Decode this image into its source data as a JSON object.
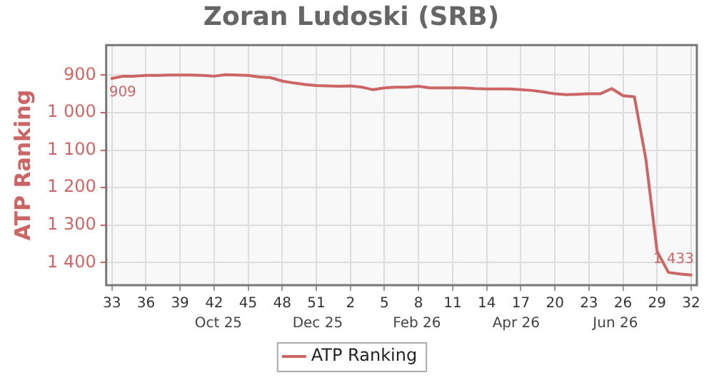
{
  "chart_data": {
    "type": "line",
    "title": "Zoran Ludoski (SRB)",
    "ylabel": "ATP Ranking",
    "categories": [
      "33",
      null,
      null,
      "36",
      null,
      null,
      "39",
      null,
      null,
      "42",
      null,
      null,
      "45",
      null,
      null,
      "48",
      null,
      null,
      "51",
      null,
      null,
      "2",
      null,
      null,
      "5",
      null,
      null,
      "8",
      null,
      null,
      "11",
      null,
      null,
      "14",
      null,
      null,
      "17",
      null,
      null,
      "20",
      null,
      null,
      "23",
      null,
      null,
      "26",
      null,
      null,
      "29",
      null,
      null,
      "32"
    ],
    "series": [
      {
        "name": "ATP Ranking",
        "color": "#cc6666",
        "values": [
          909,
          903,
          903,
          901,
          901,
          900,
          900,
          900,
          901,
          903,
          899,
          900,
          901,
          905,
          907,
          916,
          921,
          925,
          928,
          929,
          930,
          929,
          932,
          939,
          934,
          932,
          932,
          930,
          934,
          934,
          934,
          934,
          936,
          937,
          937,
          937,
          939,
          941,
          945,
          950,
          952,
          951,
          950,
          950,
          936,
          955,
          958,
          1122,
          1370,
          1426,
          1430,
          1433
        ],
        "value_labels": [
          "909",
          null,
          null,
          null,
          null,
          null,
          null,
          null,
          null,
          null,
          null,
          null,
          null,
          null,
          null,
          null,
          null,
          null,
          null,
          null,
          null,
          null,
          null,
          null,
          null,
          null,
          null,
          null,
          null,
          null,
          null,
          null,
          null,
          null,
          null,
          null,
          null,
          null,
          null,
          null,
          null,
          null,
          null,
          null,
          null,
          null,
          null,
          null,
          null,
          null,
          null,
          "1 433"
        ]
      }
    ],
    "ylim": [
      1460,
      820
    ],
    "yticks": [
      900,
      {
        "value": 1000,
        "label": "1 000"
      },
      {
        "value": 1100,
        "label": "1 100"
      },
      {
        "value": 1200,
        "label": "1 200"
      },
      {
        "value": 1300,
        "label": "1 300"
      },
      {
        "value": 1400,
        "label": "1 400"
      }
    ],
    "annotations": [
      "Oct 25",
      "Dec 25",
      "Feb 26",
      "Apr 26",
      "Jun 26"
    ],
    "grid": true,
    "legend": "bottom",
    "marker": "none",
    "line_style": "solid"
  }
}
